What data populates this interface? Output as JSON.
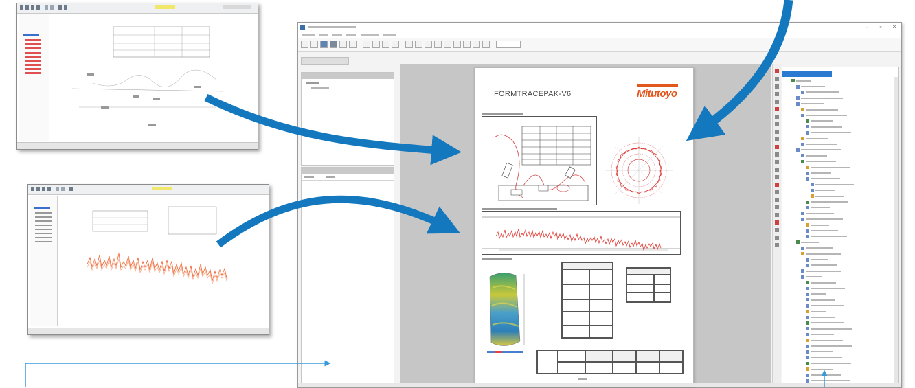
{
  "report": {
    "title": "FORMTRACEPAK-V6",
    "brand": "Mitutoyo",
    "brand_color": "#e2571e"
  },
  "colors": {
    "arrow": "#1478be",
    "thin_arrow": "#3a9ad8",
    "tree_selection": "#2a7ad2",
    "profile": "#e0322a",
    "profile_noise": "#f08060"
  },
  "icons": {
    "toolbar": [
      "new-icon",
      "open-icon",
      "save-icon",
      "print-icon",
      "preview-icon",
      "undo-icon",
      "redo-icon",
      "cut-icon",
      "copy-icon",
      "paste-icon",
      "grid-icon",
      "layout-icon",
      "table-icon",
      "chart-icon",
      "image-icon",
      "zoom-in-icon",
      "zoom-out-icon",
      "zoom-fit-icon",
      "help-icon"
    ],
    "window": [
      "minimize-icon",
      "maximize-icon",
      "close-icon"
    ]
  }
}
